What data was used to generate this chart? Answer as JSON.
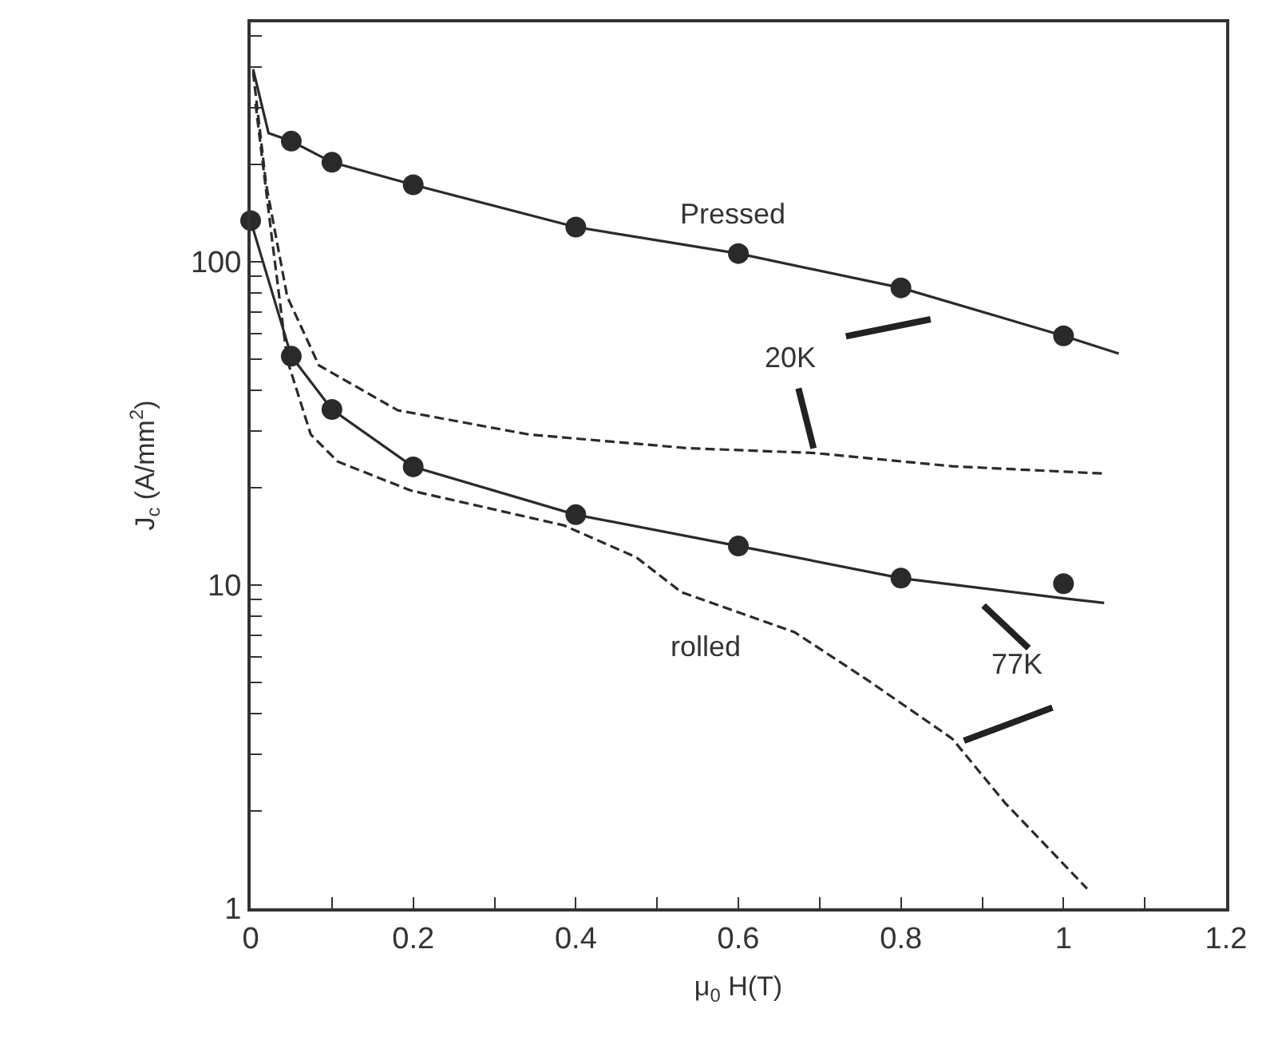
{
  "chart_data": {
    "type": "line",
    "xlabel": "μ$_{0}$ H(T)",
    "ylabel": "J$_{c}$ (A/mm$^{2}$)",
    "xlim": [
      0,
      1.2
    ],
    "ylim": [
      1,
      550
    ],
    "log": "y",
    "xticks": [
      0,
      {
        "value": 0.1,
        "label": null
      },
      0.2,
      {
        "value": 0.3,
        "label": null
      },
      0.4,
      {
        "value": 0.5,
        "label": null
      },
      0.6,
      {
        "value": 0.7,
        "label": null
      },
      0.8,
      {
        "value": 0.9,
        "label": null
      },
      1,
      {
        "value": 1.1,
        "label": null
      },
      1.2
    ],
    "yticks": [
      1,
      {
        "value": 2,
        "label": null
      },
      {
        "value": 3,
        "label": null
      },
      {
        "value": 4,
        "label": null
      },
      {
        "value": 5,
        "label": null
      },
      {
        "value": 6,
        "label": null
      },
      {
        "value": 7,
        "label": null
      },
      {
        "value": 8,
        "label": null
      },
      {
        "value": 9,
        "label": null
      },
      10,
      {
        "value": 20,
        "label": null
      },
      {
        "value": 30,
        "label": null
      },
      {
        "value": 40,
        "label": null
      },
      {
        "value": 50,
        "label": null
      },
      {
        "value": 60,
        "label": null
      },
      {
        "value": 70,
        "label": null
      },
      {
        "value": 80,
        "label": null
      },
      {
        "value": 90,
        "label": null
      },
      100,
      {
        "value": 200,
        "label": null
      },
      {
        "value": 300,
        "label": null
      },
      {
        "value": 400,
        "label": null
      },
      {
        "value": 500,
        "label": null
      }
    ],
    "series": [
      {
        "line_style": "solid",
        "marker": "none",
        "color": "#2a2a2a",
        "x": [
          0.003,
          0.022,
          0.05,
          0.1,
          0.2,
          0.4,
          0.6,
          0.8,
          1.0,
          1.068
        ],
        "values": [
          394,
          250,
          236,
          203,
          173,
          128,
          106,
          83,
          59,
          52
        ]
      },
      {
        "type": "scatter",
        "marker": "circle",
        "color": "#2a2a2a",
        "x": [
          0.05,
          0.1,
          0.2,
          0.4,
          0.6,
          0.8,
          1.0
        ],
        "values": [
          236,
          203,
          173,
          128,
          106,
          83,
          59
        ]
      },
      {
        "line_style": "solid",
        "marker": "none",
        "color": "#2a2a2a",
        "x": [
          0,
          0.05,
          0.1,
          0.2,
          0.4,
          0.6,
          0.8,
          1.0,
          1.05
        ],
        "values": [
          134,
          51,
          34.9,
          23.2,
          16.5,
          13.2,
          10.5,
          9.1,
          8.8
        ]
      },
      {
        "type": "scatter",
        "marker": "circle",
        "color": "#2a2a2a",
        "x": [
          0,
          0.05,
          0.1,
          0.2,
          0.4,
          0.6,
          0.8,
          1.0
        ],
        "values": [
          134,
          51,
          34.9,
          23.2,
          16.5,
          13.2,
          10.5,
          10.1
        ]
      },
      {
        "line_style": "dashed",
        "marker": "none",
        "color": "#2a2a2a",
        "x": [
          0.003,
          0.019,
          0.045,
          0.084,
          0.181,
          0.343,
          0.538,
          0.694,
          0.863,
          1.052
        ],
        "values": [
          386,
          174,
          78,
          47.8,
          34.7,
          29.2,
          26.5,
          25.6,
          23.3,
          22.1
        ]
      },
      {
        "line_style": "dashed",
        "marker": "none",
        "color": "#2a2a2a",
        "x": [
          0.006,
          0.026,
          0.045,
          0.074,
          0.107,
          0.197,
          0.385,
          0.474,
          0.53,
          0.669,
          0.759,
          0.863,
          0.928,
          1.029
        ],
        "values": [
          308,
          119,
          49.7,
          29.2,
          24.1,
          19.6,
          15.3,
          12.2,
          9.5,
          7.15,
          5.08,
          3.35,
          2.12,
          1.15
        ]
      }
    ],
    "annotations": [
      "Pressed",
      {
        "text": "20K",
        "x": 0.694,
        "y": 25.6
      },
      "rolled",
      "77K"
    ]
  }
}
